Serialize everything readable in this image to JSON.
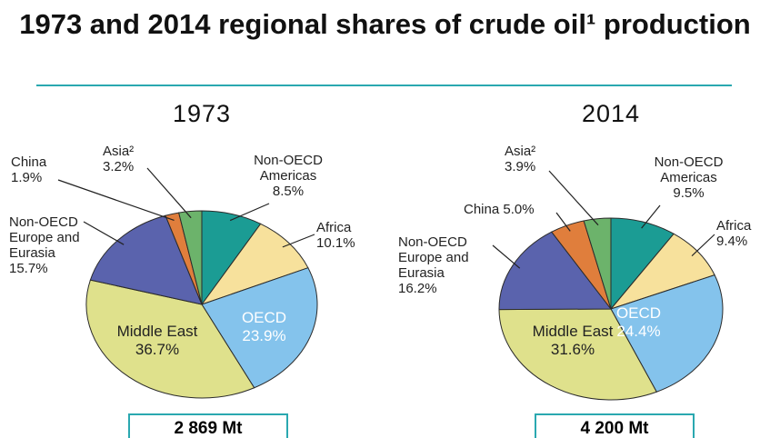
{
  "title": "1973 and 2014 regional shares of crude oil¹ production",
  "chart_data": [
    {
      "type": "pie",
      "title": "1973",
      "total": "2 869 Mt",
      "categories": [
        "Non-OECD Americas",
        "Africa",
        "OECD",
        "Middle East",
        "Non-OECD Europe and Eurasia",
        "China",
        "Asia²"
      ],
      "values": [
        8.5,
        10.1,
        23.9,
        36.7,
        15.7,
        1.9,
        3.2
      ],
      "value_labels": [
        "8.5%",
        "10.1%",
        "23.9%",
        "36.7%",
        "15.7%",
        "1.9%",
        "3.2%"
      ],
      "colors": [
        "#1b9c94",
        "#f7e19c",
        "#84c3ec",
        "#dfe18c",
        "#5a63ad",
        "#e07e3c",
        "#6cb36b"
      ]
    },
    {
      "type": "pie",
      "title": "2014",
      "total": "4 200 Mt",
      "categories": [
        "Non-OECD Americas",
        "Africa",
        "OECD",
        "Middle East",
        "Non-OECD Europe and Eurasia",
        "China",
        "Asia²"
      ],
      "values": [
        9.5,
        9.4,
        24.4,
        31.6,
        16.2,
        5.0,
        3.9
      ],
      "value_labels": [
        "9.5%",
        "9.4%",
        "24.4%",
        "31.6%",
        "16.2%",
        "5.0%",
        "3.9%"
      ],
      "colors": [
        "#1b9c94",
        "#f7e19c",
        "#84c3ec",
        "#dfe18c",
        "#5a63ad",
        "#e07e3c",
        "#6cb36b"
      ]
    }
  ]
}
